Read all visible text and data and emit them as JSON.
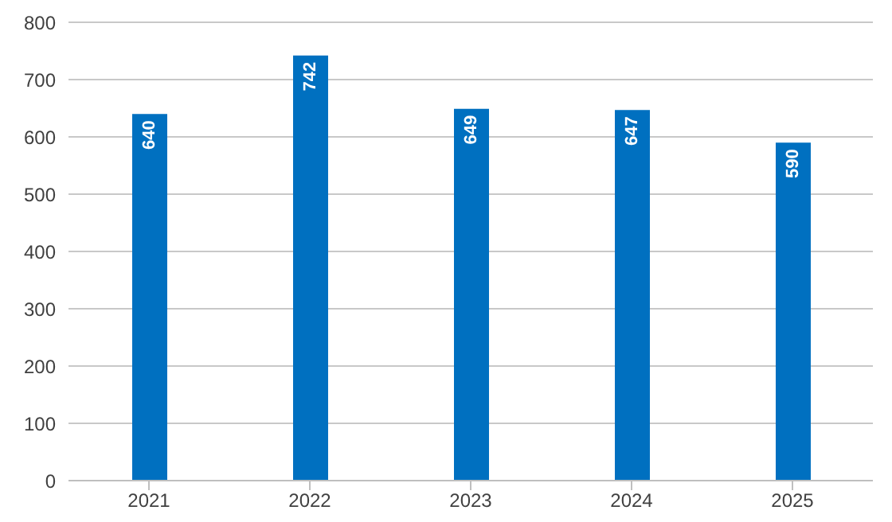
{
  "chart_data": {
    "type": "bar",
    "categories": [
      "2021",
      "2022",
      "2023",
      "2024",
      "2025"
    ],
    "values": [
      640,
      742,
      649,
      647,
      590
    ],
    "color": "#0070c0",
    "ylim": [
      0,
      800
    ],
    "yticks": [
      0,
      100,
      200,
      300,
      400,
      500,
      600,
      700,
      800
    ],
    "grid": "y",
    "data_labels": true
  }
}
